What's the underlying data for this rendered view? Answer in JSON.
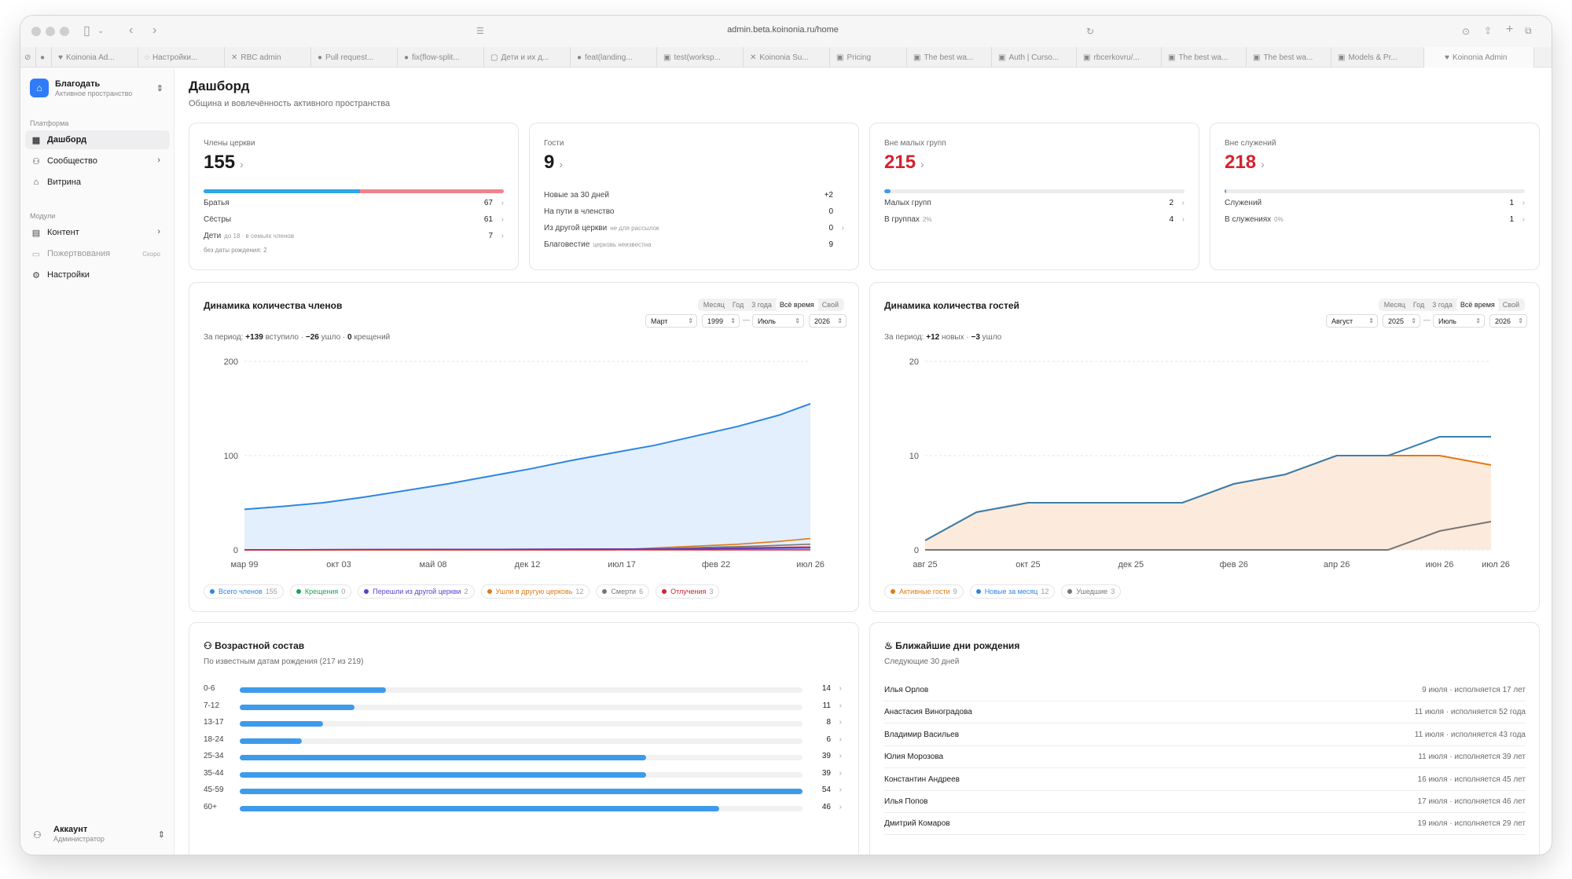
{
  "browser": {
    "url": "admin.beta.koinonia.ru/home",
    "tabs": [
      "Koinonia Ad...",
      "Настройки...",
      "RBC admin",
      "Pull request...",
      "fix(flow-split...",
      "Дети и их д...",
      "feat(landing...",
      "test(worksp...",
      "Koinonia Su...",
      "Pricing",
      "The best wa...",
      "Auth | Curso...",
      "rbcerkovru/...",
      "The best wa...",
      "The best wa...",
      "Models & Pr...",
      "Koinonia Admin"
    ]
  },
  "sidebar": {
    "workspace": {
      "name": "Благодать",
      "subtitle": "Активное пространство"
    },
    "section_platform": "Платформа",
    "section_modules": "Модули",
    "items": [
      {
        "label": "Дашборд",
        "icon": "dashboard-icon"
      },
      {
        "label": "Сообщество",
        "icon": "users-icon"
      },
      {
        "label": "Витрина",
        "icon": "store-icon"
      },
      {
        "label": "Контент",
        "icon": "content-icon"
      },
      {
        "label": "Пожертвования",
        "icon": "donations-icon",
        "badge": "Скоро"
      },
      {
        "label": "Настройки",
        "icon": "gear-icon"
      }
    ],
    "account": {
      "name": "Аккаунт",
      "role": "Администратор"
    }
  },
  "page": {
    "title": "Дашборд",
    "subtitle": "Община и вовлечённость активного пространства"
  },
  "kpis": {
    "members": {
      "label": "Члены церкви",
      "value": "155",
      "rows": [
        {
          "label": "Братья",
          "value": "67"
        },
        {
          "label": "Сёстры",
          "value": "61"
        },
        {
          "label": "Дети",
          "note": "до 18 · в семьях членов",
          "value": "7"
        }
      ],
      "footnote": "без даты рождения: 2",
      "bar_share_brothers": 0.52
    },
    "guests": {
      "label": "Гости",
      "value": "9",
      "rows": [
        {
          "label": "Новые за 30 дней",
          "value": "+2"
        },
        {
          "label": "На пути в членство",
          "value": "0"
        },
        {
          "label": "Из другой церкви",
          "note": "не для рассылок",
          "value": "0"
        },
        {
          "label": "Благовестие",
          "note": "церковь неизвестна",
          "value": "9"
        }
      ]
    },
    "outside_groups": {
      "label": "Вне малых групп",
      "value": "215",
      "rows": [
        {
          "label": "Малых групп",
          "value": "2"
        },
        {
          "label": "В группах",
          "note": "2%",
          "value": "4"
        }
      ],
      "bar_fill": 0.02
    },
    "outside_ministries": {
      "label": "Вне служений",
      "value": "218",
      "rows": [
        {
          "label": "Служений",
          "value": "1"
        },
        {
          "label": "В служениях",
          "note": "0%",
          "value": "1"
        }
      ],
      "bar_fill": 0.005
    }
  },
  "members_chart": {
    "title": "Динамика количества членов",
    "ranges": [
      "Месяц",
      "Год",
      "3 года",
      "Всё время",
      "Свой"
    ],
    "active_range": "Всё время",
    "from_month": "Март",
    "from_year": "1999",
    "to_month": "Июль",
    "to_year": "2026",
    "summary": {
      "prefix": "За период:",
      "joined": "+139",
      "joined_label": "вступило",
      "left": "−26",
      "left_label": "ушло",
      "baptisms": "0",
      "baptisms_label": "крещений"
    },
    "legend": [
      {
        "label": "Всего членов",
        "count": "155",
        "color": "#2f86e0"
      },
      {
        "label": "Крещения",
        "count": "0",
        "color": "#1aa35a"
      },
      {
        "label": "Перешли из другой церкви",
        "count": "2",
        "color": "#5b3fd1"
      },
      {
        "label": "Ушли в другую церковь",
        "count": "12",
        "color": "#e07a14"
      },
      {
        "label": "Смерти",
        "count": "6",
        "color": "#777777"
      },
      {
        "label": "Отлучения",
        "count": "3",
        "color": "#d3232f"
      }
    ]
  },
  "guests_chart": {
    "title": "Динамика количества гостей",
    "ranges": [
      "Месяц",
      "Год",
      "3 года",
      "Всё время",
      "Свой"
    ],
    "active_range": "Всё время",
    "from_month": "Август",
    "from_year": "2025",
    "to_month": "Июль",
    "to_year": "2026",
    "summary": {
      "prefix": "За период:",
      "new": "+12",
      "new_label": "новых",
      "left": "−3",
      "left_label": "ушло"
    },
    "legend": [
      {
        "label": "Активные гости",
        "count": "9",
        "color": "#e07a14"
      },
      {
        "label": "Новые за месяц",
        "count": "12",
        "color": "#2f86e0"
      },
      {
        "label": "Ушедшие",
        "count": "3",
        "color": "#777777"
      }
    ]
  },
  "age": {
    "title": "Возрастной состав",
    "subtitle": "По известным датам рождения (217 из 219)",
    "groups": [
      {
        "label": "0-6",
        "value": "14",
        "fraction": 0.26
      },
      {
        "label": "7-12",
        "value": "11",
        "fraction": 0.204
      },
      {
        "label": "13-17",
        "value": "8",
        "fraction": 0.148
      },
      {
        "label": "18-24",
        "value": "6",
        "fraction": 0.111
      },
      {
        "label": "25-34",
        "value": "39",
        "fraction": 0.722
      },
      {
        "label": "35-44",
        "value": "39",
        "fraction": 0.722
      },
      {
        "label": "45-59",
        "value": "54",
        "fraction": 1.0
      },
      {
        "label": "60+",
        "value": "46",
        "fraction": 0.852
      }
    ]
  },
  "birthdays": {
    "title": "Ближайшие дни рождения",
    "subtitle": "Следующие 30 дней",
    "items": [
      {
        "name": "Илья Орлов",
        "info": "9 июля · исполняется 17 лет"
      },
      {
        "name": "Анастасия Виноградова",
        "info": "11 июля · исполняется 52 года"
      },
      {
        "name": "Владимир Васильев",
        "info": "11 июля · исполняется 43 года"
      },
      {
        "name": "Юлия Морозова",
        "info": "11 июля · исполняется 39 лет"
      },
      {
        "name": "Константин Андреев",
        "info": "16 июля · исполняется 45 лет"
      },
      {
        "name": "Илья Попов",
        "info": "17 июля · исполняется 46 лет"
      },
      {
        "name": "Дмитрий Комаров",
        "info": "19 июля · исполняется 29 лет"
      }
    ]
  },
  "chart_data": [
    {
      "type": "area",
      "x_ticks": [
        "мар 99",
        "окт 03",
        "май 08",
        "дек 12",
        "июл 17",
        "фев 22",
        "июл 26"
      ],
      "ylim": [
        0,
        200
      ],
      "y_ticks": [
        "0",
        "100",
        "200"
      ],
      "grid": true,
      "series": [
        {
          "name": "Всего членов",
          "x": [
            1999.2,
            2001,
            2003,
            2005,
            2007,
            2009,
            2011,
            2013,
            2015,
            2017,
            2019,
            2021,
            2023,
            2025,
            2026.5
          ],
          "values": [
            43,
            46,
            50,
            56,
            63,
            70,
            78,
            86,
            95,
            103,
            111,
            121,
            131,
            143,
            155
          ]
        },
        {
          "name": "Ушли в другую церковь",
          "x": [
            1999.2,
            2017,
            2019,
            2021,
            2023,
            2025,
            2026.5
          ],
          "values": [
            0,
            0,
            2,
            4,
            6,
            9,
            12
          ]
        },
        {
          "name": "Смерти",
          "x": [
            1999.2,
            2019,
            2022,
            2024,
            2026.5
          ],
          "values": [
            0,
            1,
            3,
            4,
            6
          ]
        },
        {
          "name": "Отлучения",
          "x": [
            1999.2,
            2020,
            2023,
            2026.5
          ],
          "values": [
            0,
            1,
            2,
            3
          ]
        },
        {
          "name": "Перешли из другой церкви",
          "x": [
            1999.2,
            2021,
            2026.5
          ],
          "values": [
            0,
            1,
            2
          ]
        }
      ]
    },
    {
      "type": "line",
      "x_ticks": [
        "авг 25",
        "окт 25",
        "дек 25",
        "фев 26",
        "апр 26",
        "июн 26",
        "июл 26"
      ],
      "ylim": [
        0,
        20
      ],
      "y_ticks": [
        "0",
        "10",
        "20"
      ],
      "grid": true,
      "x": [
        "2025-08",
        "2025-09",
        "2025-10",
        "2025-11",
        "2025-12",
        "2026-01",
        "2026-02",
        "2026-03",
        "2026-04",
        "2026-05",
        "2026-06",
        "2026-07"
      ],
      "series": [
        {
          "name": "Активные гости",
          "values": [
            1,
            4,
            5,
            5,
            5,
            5,
            7,
            8,
            10,
            10,
            10,
            9
          ]
        },
        {
          "name": "Новые за месяц",
          "values": [
            1,
            4,
            5,
            5,
            5,
            5,
            7,
            8,
            10,
            10,
            12,
            12
          ]
        },
        {
          "name": "Ушедшие",
          "values": [
            0,
            0,
            0,
            0,
            0,
            0,
            0,
            0,
            0,
            0,
            2,
            3
          ]
        }
      ]
    }
  ]
}
